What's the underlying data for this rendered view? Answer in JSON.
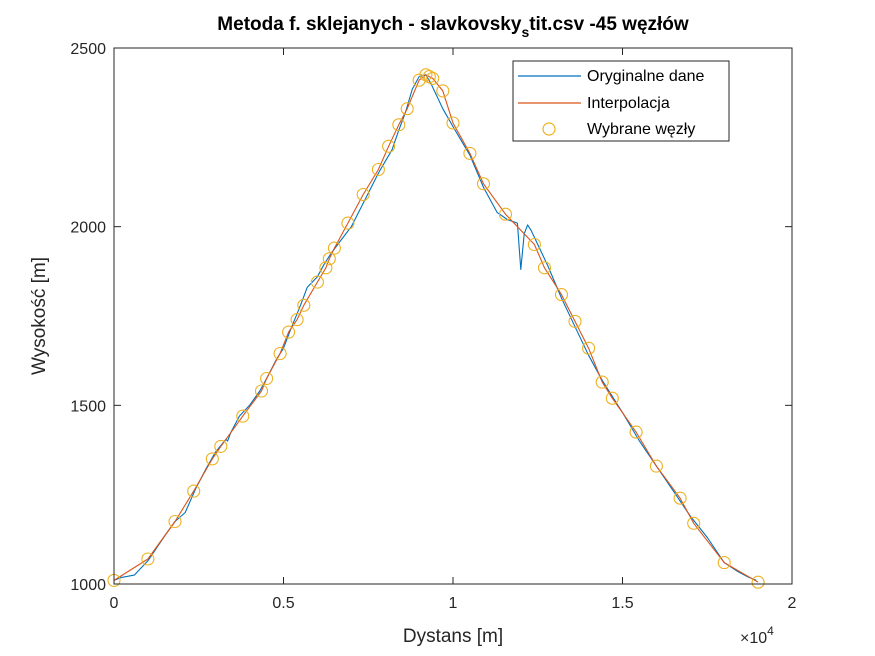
{
  "chart_data": {
    "type": "line",
    "title_main": "Metoda f. sklejanych - slavkovsky",
    "title_sub": "s",
    "title_tail": "tit.csv -45 węzłów",
    "xlabel": "Dystans [m]",
    "ylabel": "Wysokość [m]",
    "x_exponent_base": "×10",
    "x_exponent_power": "4",
    "xlim": [
      0,
      2
    ],
    "ylim": [
      1000,
      2500
    ],
    "xticks": [
      "0",
      "0.5",
      "1",
      "1.5",
      "2"
    ],
    "yticks": [
      "1000",
      "1500",
      "2000",
      "2500"
    ],
    "grid": false,
    "legend_position": "top-right",
    "colors": {
      "original": "#0072BD",
      "interpolation": "#D95319",
      "nodes": "#EDB120"
    },
    "series": [
      {
        "name": "Oryginalne dane",
        "x": [
          0,
          0.02,
          0.06,
          0.1,
          0.15,
          0.18,
          0.21,
          0.24,
          0.27,
          0.3,
          0.33,
          0.335,
          0.345,
          0.37,
          0.4,
          0.43,
          0.45,
          0.48,
          0.5,
          0.52,
          0.55,
          0.57,
          0.6,
          0.62,
          0.64,
          0.66,
          0.7,
          0.74,
          0.78,
          0.82,
          0.84,
          0.86,
          0.88,
          0.9,
          0.92,
          0.935,
          0.945,
          0.97,
          1.0,
          1.05,
          1.09,
          1.13,
          1.16,
          1.19,
          1.2,
          1.21,
          1.22,
          1.23,
          1.25,
          1.28,
          1.32,
          1.36,
          1.4,
          1.44,
          1.48,
          1.5,
          1.55,
          1.6,
          1.65,
          1.7,
          1.75,
          1.8,
          1.84,
          1.87,
          1.895
        ],
        "y": [
          1010,
          1018,
          1025,
          1065,
          1135,
          1175,
          1200,
          1265,
          1320,
          1370,
          1405,
          1400,
          1425,
          1470,
          1500,
          1540,
          1575,
          1630,
          1660,
          1710,
          1780,
          1830,
          1860,
          1895,
          1925,
          1950,
          2000,
          2075,
          2150,
          2215,
          2270,
          2320,
          2385,
          2420,
          2425,
          2400,
          2380,
          2330,
          2280,
          2200,
          2110,
          2040,
          2020,
          2010,
          1880,
          1980,
          2005,
          1990,
          1950,
          1890,
          1800,
          1720,
          1640,
          1570,
          1510,
          1480,
          1400,
          1330,
          1260,
          1190,
          1130,
          1060,
          1035,
          1020,
          1010
        ]
      },
      {
        "name": "Interpolacja",
        "x": [
          0,
          0.1,
          0.18,
          0.235,
          0.29,
          0.315,
          0.38,
          0.435,
          0.45,
          0.49,
          0.515,
          0.54,
          0.56,
          0.6,
          0.625,
          0.635,
          0.65,
          0.69,
          0.735,
          0.78,
          0.81,
          0.84,
          0.865,
          0.9,
          0.92,
          0.93,
          0.94,
          0.97,
          1.0,
          1.05,
          1.09,
          1.155,
          1.24,
          1.27,
          1.32,
          1.36,
          1.4,
          1.44,
          1.47,
          1.54,
          1.6,
          1.67,
          1.71,
          1.8,
          1.9
        ],
        "y": [
          1010,
          1070,
          1175,
          1260,
          1350,
          1385,
          1470,
          1540,
          1575,
          1645,
          1705,
          1740,
          1780,
          1845,
          1885,
          1910,
          1940,
          2010,
          2090,
          2160,
          2225,
          2285,
          2330,
          2410,
          2425,
          2420,
          2415,
          2380,
          2290,
          2205,
          2120,
          2035,
          1950,
          1885,
          1810,
          1735,
          1660,
          1565,
          1520,
          1425,
          1330,
          1240,
          1170,
          1060,
          1005
        ]
      },
      {
        "name": "Wybrane węzły",
        "x": [
          0,
          0.1,
          0.18,
          0.235,
          0.29,
          0.315,
          0.38,
          0.435,
          0.45,
          0.49,
          0.515,
          0.54,
          0.56,
          0.6,
          0.625,
          0.635,
          0.65,
          0.69,
          0.735,
          0.78,
          0.81,
          0.84,
          0.865,
          0.9,
          0.92,
          0.93,
          0.94,
          0.97,
          1.0,
          1.05,
          1.09,
          1.155,
          1.24,
          1.27,
          1.32,
          1.36,
          1.4,
          1.44,
          1.47,
          1.54,
          1.6,
          1.67,
          1.71,
          1.8,
          1.9
        ],
        "y": [
          1010,
          1070,
          1175,
          1260,
          1350,
          1385,
          1470,
          1540,
          1575,
          1645,
          1705,
          1740,
          1780,
          1845,
          1885,
          1910,
          1940,
          2010,
          2090,
          2160,
          2225,
          2285,
          2330,
          2410,
          2425,
          2420,
          2415,
          2380,
          2290,
          2205,
          2120,
          2035,
          1950,
          1885,
          1810,
          1735,
          1660,
          1565,
          1520,
          1425,
          1330,
          1240,
          1170,
          1060,
          1005
        ]
      }
    ]
  }
}
